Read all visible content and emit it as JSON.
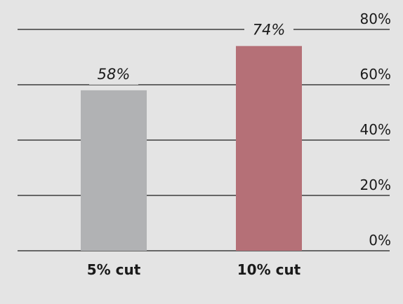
{
  "chart_data": {
    "type": "bar",
    "categories": [
      "5% cut",
      "10% cut"
    ],
    "values": [
      58,
      74
    ],
    "data_labels": [
      "58%",
      "74%"
    ],
    "bar_colors": [
      "#b1b2b4",
      "#b57077"
    ],
    "ylim": [
      0,
      80
    ],
    "yticks": [
      0,
      20,
      40,
      60,
      80
    ],
    "ytick_labels": [
      "0%",
      "20%",
      "40%",
      "60%",
      "80%"
    ],
    "y_axis_position": "right",
    "grid": true,
    "title": "",
    "xlabel": "",
    "ylabel": ""
  }
}
